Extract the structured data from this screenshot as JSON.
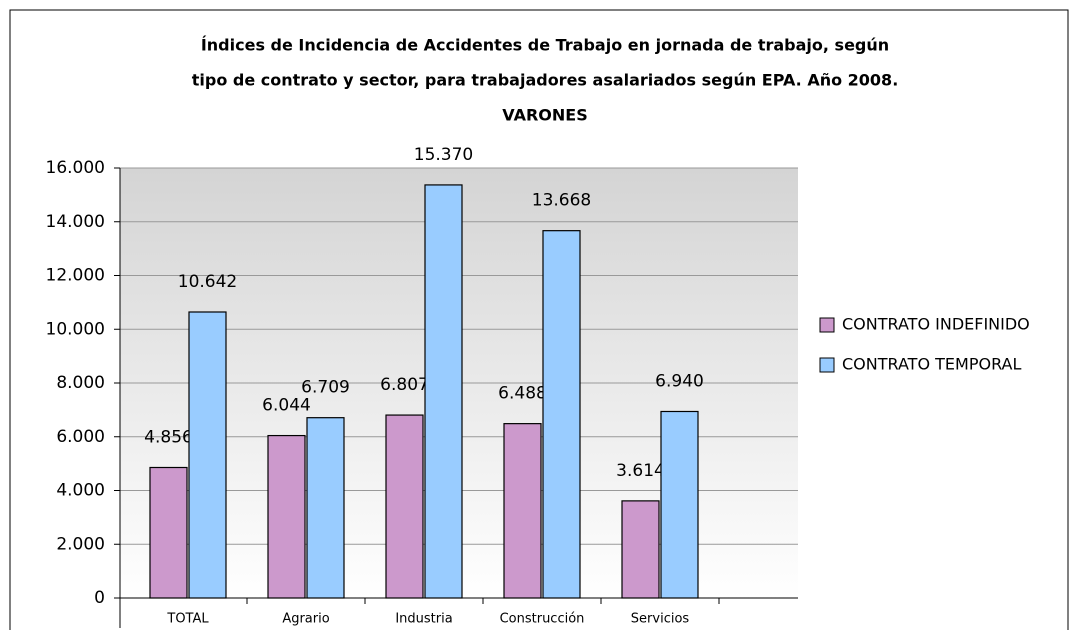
{
  "chart_data": {
    "type": "bar",
    "title": [
      "Índices de Incidencia de Accidentes de Trabajo en jornada de trabajo, según",
      "tipo de contrato y sector, para trabajadores asalariados según EPA. Año 2008.",
      "VARONES"
    ],
    "categories": [
      "TOTAL",
      "Agrario",
      "Industria",
      "Construcción",
      "Servicios"
    ],
    "series": [
      {
        "name": "CONTRATO INDEFINIDO",
        "color": "#cc99cc",
        "values": [
          4856,
          6044,
          6807,
          6488,
          3614
        ],
        "value_labels": [
          "4.856",
          "6.044",
          "6.807",
          "6.488",
          "3.614"
        ]
      },
      {
        "name": "CONTRATO TEMPORAL",
        "color": "#99ccff",
        "values": [
          10642,
          6709,
          15370,
          13668,
          6940
        ],
        "value_labels": [
          "10.642",
          "6.709",
          "15.370",
          "13.668",
          "6.940"
        ]
      }
    ],
    "ylim": [
      0,
      16000
    ],
    "yticks": [
      0,
      {
        "value": 2000,
        "label": "2.000"
      },
      {
        "value": 4000,
        "label": "4.000"
      },
      {
        "value": 6000,
        "label": "6.000"
      },
      {
        "value": 8000,
        "label": "8.000"
      },
      {
        "value": 10000,
        "label": "10.000"
      },
      {
        "value": 12000,
        "label": "12.000"
      },
      {
        "value": 14000,
        "label": "14.000"
      },
      {
        "value": 16000,
        "label": "16.000"
      }
    ],
    "grid": true,
    "legend": "right"
  }
}
